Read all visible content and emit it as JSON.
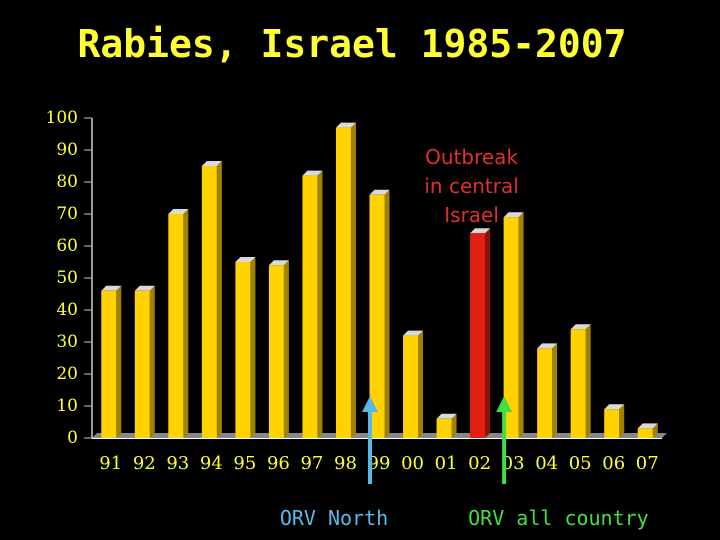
{
  "chart_data": {
    "type": "bar",
    "title": "Rabies, Israel 1985-2007",
    "xlabel": "",
    "ylabel": "",
    "ylim": [
      0,
      100
    ],
    "yticks": [
      0,
      10,
      20,
      30,
      40,
      50,
      60,
      70,
      80,
      90,
      100
    ],
    "grid": false,
    "legend": "none",
    "categories": [
      "91",
      "92",
      "93",
      "94",
      "95",
      "96",
      "97",
      "98",
      "99",
      "00",
      "01",
      "02",
      "03",
      "04",
      "05",
      "06",
      "07"
    ],
    "values": [
      46,
      46,
      70,
      85,
      55,
      54,
      82,
      97,
      76,
      32,
      6,
      64,
      69,
      28,
      34,
      9,
      3
    ],
    "highlight": {
      "category": "02",
      "color": "#e02010"
    },
    "annotations": [
      {
        "text": [
          "Outbreak",
          "in central",
          "Israel"
        ],
        "target": "02",
        "color": "#e0302a"
      },
      {
        "text": "ORV North",
        "at": "99",
        "color": "#5ab8e8",
        "arrow": "up"
      },
      {
        "text": "ORV all country",
        "at": "03",
        "color": "#44dd44",
        "arrow": "up"
      }
    ]
  },
  "colors": {
    "background": "#000000",
    "title": "#ffff33",
    "bar": "#ffd200",
    "bar_highlight": "#e02010",
    "axis": "#ffffff",
    "tick_text": "#ffff33"
  }
}
